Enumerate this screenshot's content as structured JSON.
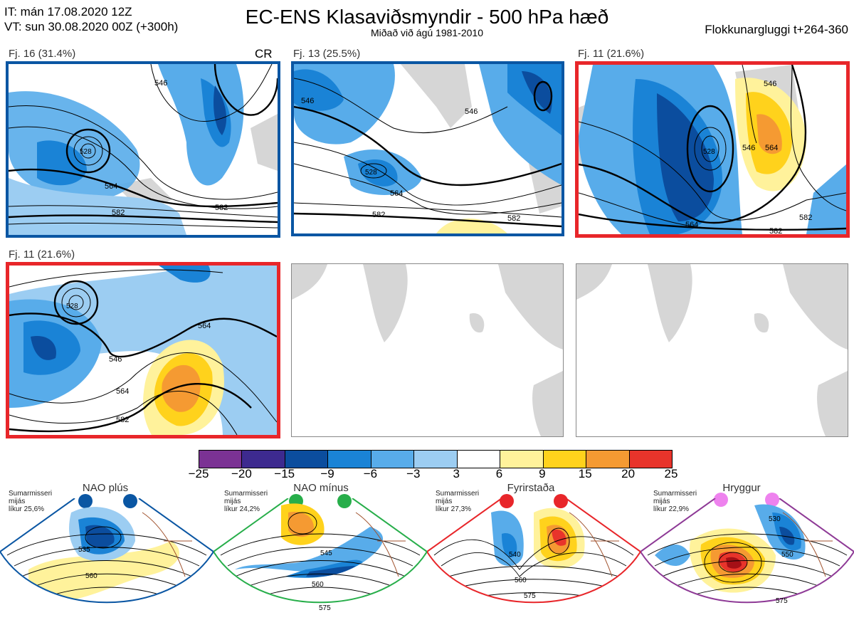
{
  "header": {
    "it_line": "IT: mán 17.08.2020 12Z",
    "vt_line": "VT: sun 30.08.2020 00Z  (+300h)",
    "title": "EC-ENS Klasaviðsmyndir - 500 hPa hæð",
    "subtitle": "Miðað við ágú 1981-2010",
    "window": "Flokkunargluggi t+264-360"
  },
  "panels": [
    {
      "label": "Fj. 16 (31.4%)",
      "tag": "CR",
      "border": "#0a56a3",
      "contours": [
        "546",
        "564",
        "582",
        "528",
        "582"
      ]
    },
    {
      "label": "Fj. 13 (25.5%)",
      "border": "#0a56a3",
      "contours": [
        "546",
        "546",
        "528",
        "564",
        "582",
        "582"
      ]
    },
    {
      "label": "Fj. 11 (21.6%)",
      "border": "#e8262a",
      "contours": [
        "546",
        "528",
        "546",
        "564",
        "564",
        "582",
        "582"
      ]
    },
    {
      "label": "Fj. 11 (21.6%)",
      "border": "#e8262a",
      "contours": [
        "528",
        "546",
        "564",
        "564",
        "582"
      ]
    },
    {
      "label": "",
      "border": "#888888"
    },
    {
      "label": "",
      "border": "#888888"
    }
  ],
  "colorbar": {
    "labels": [
      "−25",
      "−20",
      "−15",
      "−9",
      "−6",
      "−3",
      "3",
      "6",
      "9",
      "15",
      "20",
      "25"
    ],
    "colors": [
      "#7b3294",
      "#3d2a8f",
      "#0b4d9e",
      "#1a83d6",
      "#58acea",
      "#9ccdf2",
      "#ffffff",
      "#fff29b",
      "#ffd21c",
      "#f59a32",
      "#e8342b",
      "#a51016"
    ]
  },
  "regimes": [
    {
      "name": "NAO plús",
      "prob_line1": "Sumarmisseri",
      "prob_line2": "mijás",
      "prob_line3": "líkur 25,6%",
      "dot_color": "#0a56a3",
      "frame": "#0a56a3",
      "contours": [
        "535",
        "560"
      ]
    },
    {
      "name": "NAO mínus",
      "prob_line1": "Sumarmisseri",
      "prob_line2": "mijás",
      "prob_line3": "líkur 24,2%",
      "dot_color": "#27ae4a",
      "frame": "#27ae4a",
      "contours": [
        "545",
        "560",
        "575"
      ]
    },
    {
      "name": "Fyrirstaða",
      "prob_line1": "Sumarmisseri",
      "prob_line2": "mijás",
      "prob_line3": "líkur 27,3%",
      "dot_color": "#e8262a",
      "frame": "#e8262a",
      "contours": [
        "540",
        "560",
        "575"
      ]
    },
    {
      "name": "Hryggur",
      "prob_line1": "Sumarmisseri",
      "prob_line2": "mijás",
      "prob_line3": "líkur 22,9%",
      "dot_color": "#ee82ee",
      "frame": "#8e3a96",
      "contours": [
        "530",
        "550",
        "575"
      ]
    }
  ]
}
